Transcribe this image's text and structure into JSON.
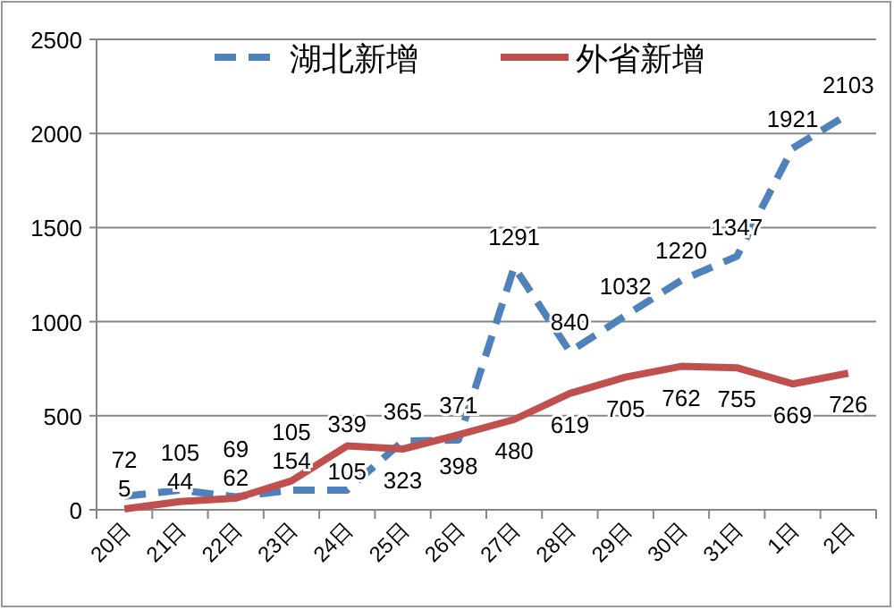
{
  "chart_data": {
    "type": "line",
    "categories": [
      "20日",
      "21日",
      "22日",
      "23日",
      "24日",
      "25日",
      "26日",
      "27日",
      "28日",
      "29日",
      "30日",
      "31日",
      "1日",
      "2日"
    ],
    "series": [
      {
        "name": "湖北新增",
        "color": "#4f81bd",
        "line_style": "dashed",
        "values": [
          72,
          105,
          69,
          105,
          105,
          365,
          371,
          1291,
          840,
          1032,
          1220,
          1347,
          1921,
          2103
        ]
      },
      {
        "name": "外省新增",
        "color": "#c0504d",
        "line_style": "solid",
        "values": [
          5,
          44,
          62,
          154,
          339,
          323,
          398,
          480,
          619,
          705,
          762,
          755,
          669,
          726
        ]
      }
    ],
    "ylim": [
      0,
      2500
    ],
    "yticks": [
      0,
      500,
      1000,
      1500,
      2000,
      2500
    ],
    "grid": "y",
    "legend": "top",
    "marker": "none",
    "data_labels": true
  }
}
